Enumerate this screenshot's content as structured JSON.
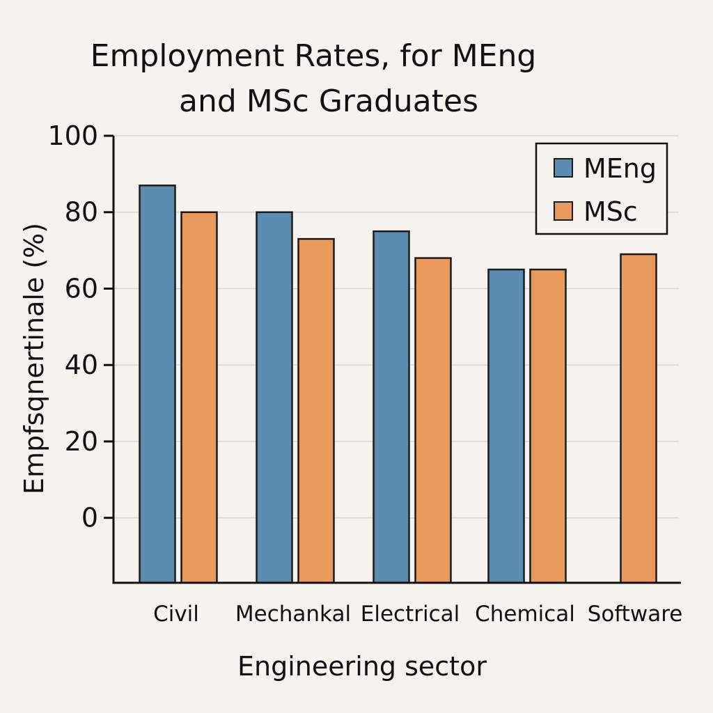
{
  "chart_data": {
    "type": "bar",
    "title": [
      "Employment Rates, for MEng",
      "and MSc Graduates"
    ],
    "xlabel": "Engineering sector",
    "ylabel": "Empfsqnertinale (%)",
    "categories": [
      "Civil",
      "Mechankal",
      "Electrical",
      "Chemical",
      "Software"
    ],
    "series": [
      {
        "name": "MEng",
        "color": "#5b8db3",
        "values": [
          87,
          80,
          75,
          65,
          null
        ]
      },
      {
        "name": "MSc",
        "color": "#e89a5c",
        "values": [
          80,
          73,
          68,
          65,
          69
        ]
      }
    ],
    "yticks": [
      0,
      20,
      40,
      60,
      80,
      100
    ],
    "ylim": [
      -17,
      100
    ],
    "grid": true,
    "legend": "top-right"
  }
}
